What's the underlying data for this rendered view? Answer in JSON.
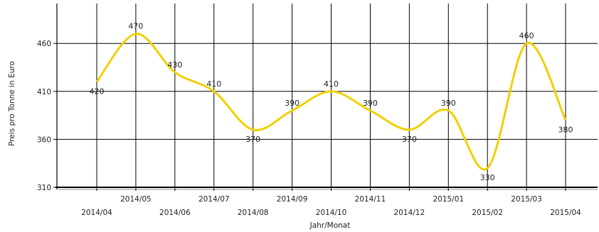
{
  "chart_data": {
    "type": "line",
    "xlabel": "Jahr/Monat",
    "ylabel": "Preis pro Tonne in Euro",
    "ylim": [
      310,
      510
    ],
    "yticks": [
      310,
      360,
      410,
      460
    ],
    "grid": true,
    "line_color": "#f0d000",
    "categories": [
      "2014/04",
      "2014/05",
      "2014/06",
      "2014/07",
      "2014/08",
      "2014/09",
      "2014/10",
      "2014/11",
      "2014/12",
      "2015/01",
      "2015/02",
      "2015/03",
      "2015/04"
    ],
    "series": [
      {
        "values": [
          420,
          470,
          430,
          410,
          370,
          390,
          410,
          390,
          370,
          390,
          330,
          460,
          380
        ]
      }
    ]
  }
}
